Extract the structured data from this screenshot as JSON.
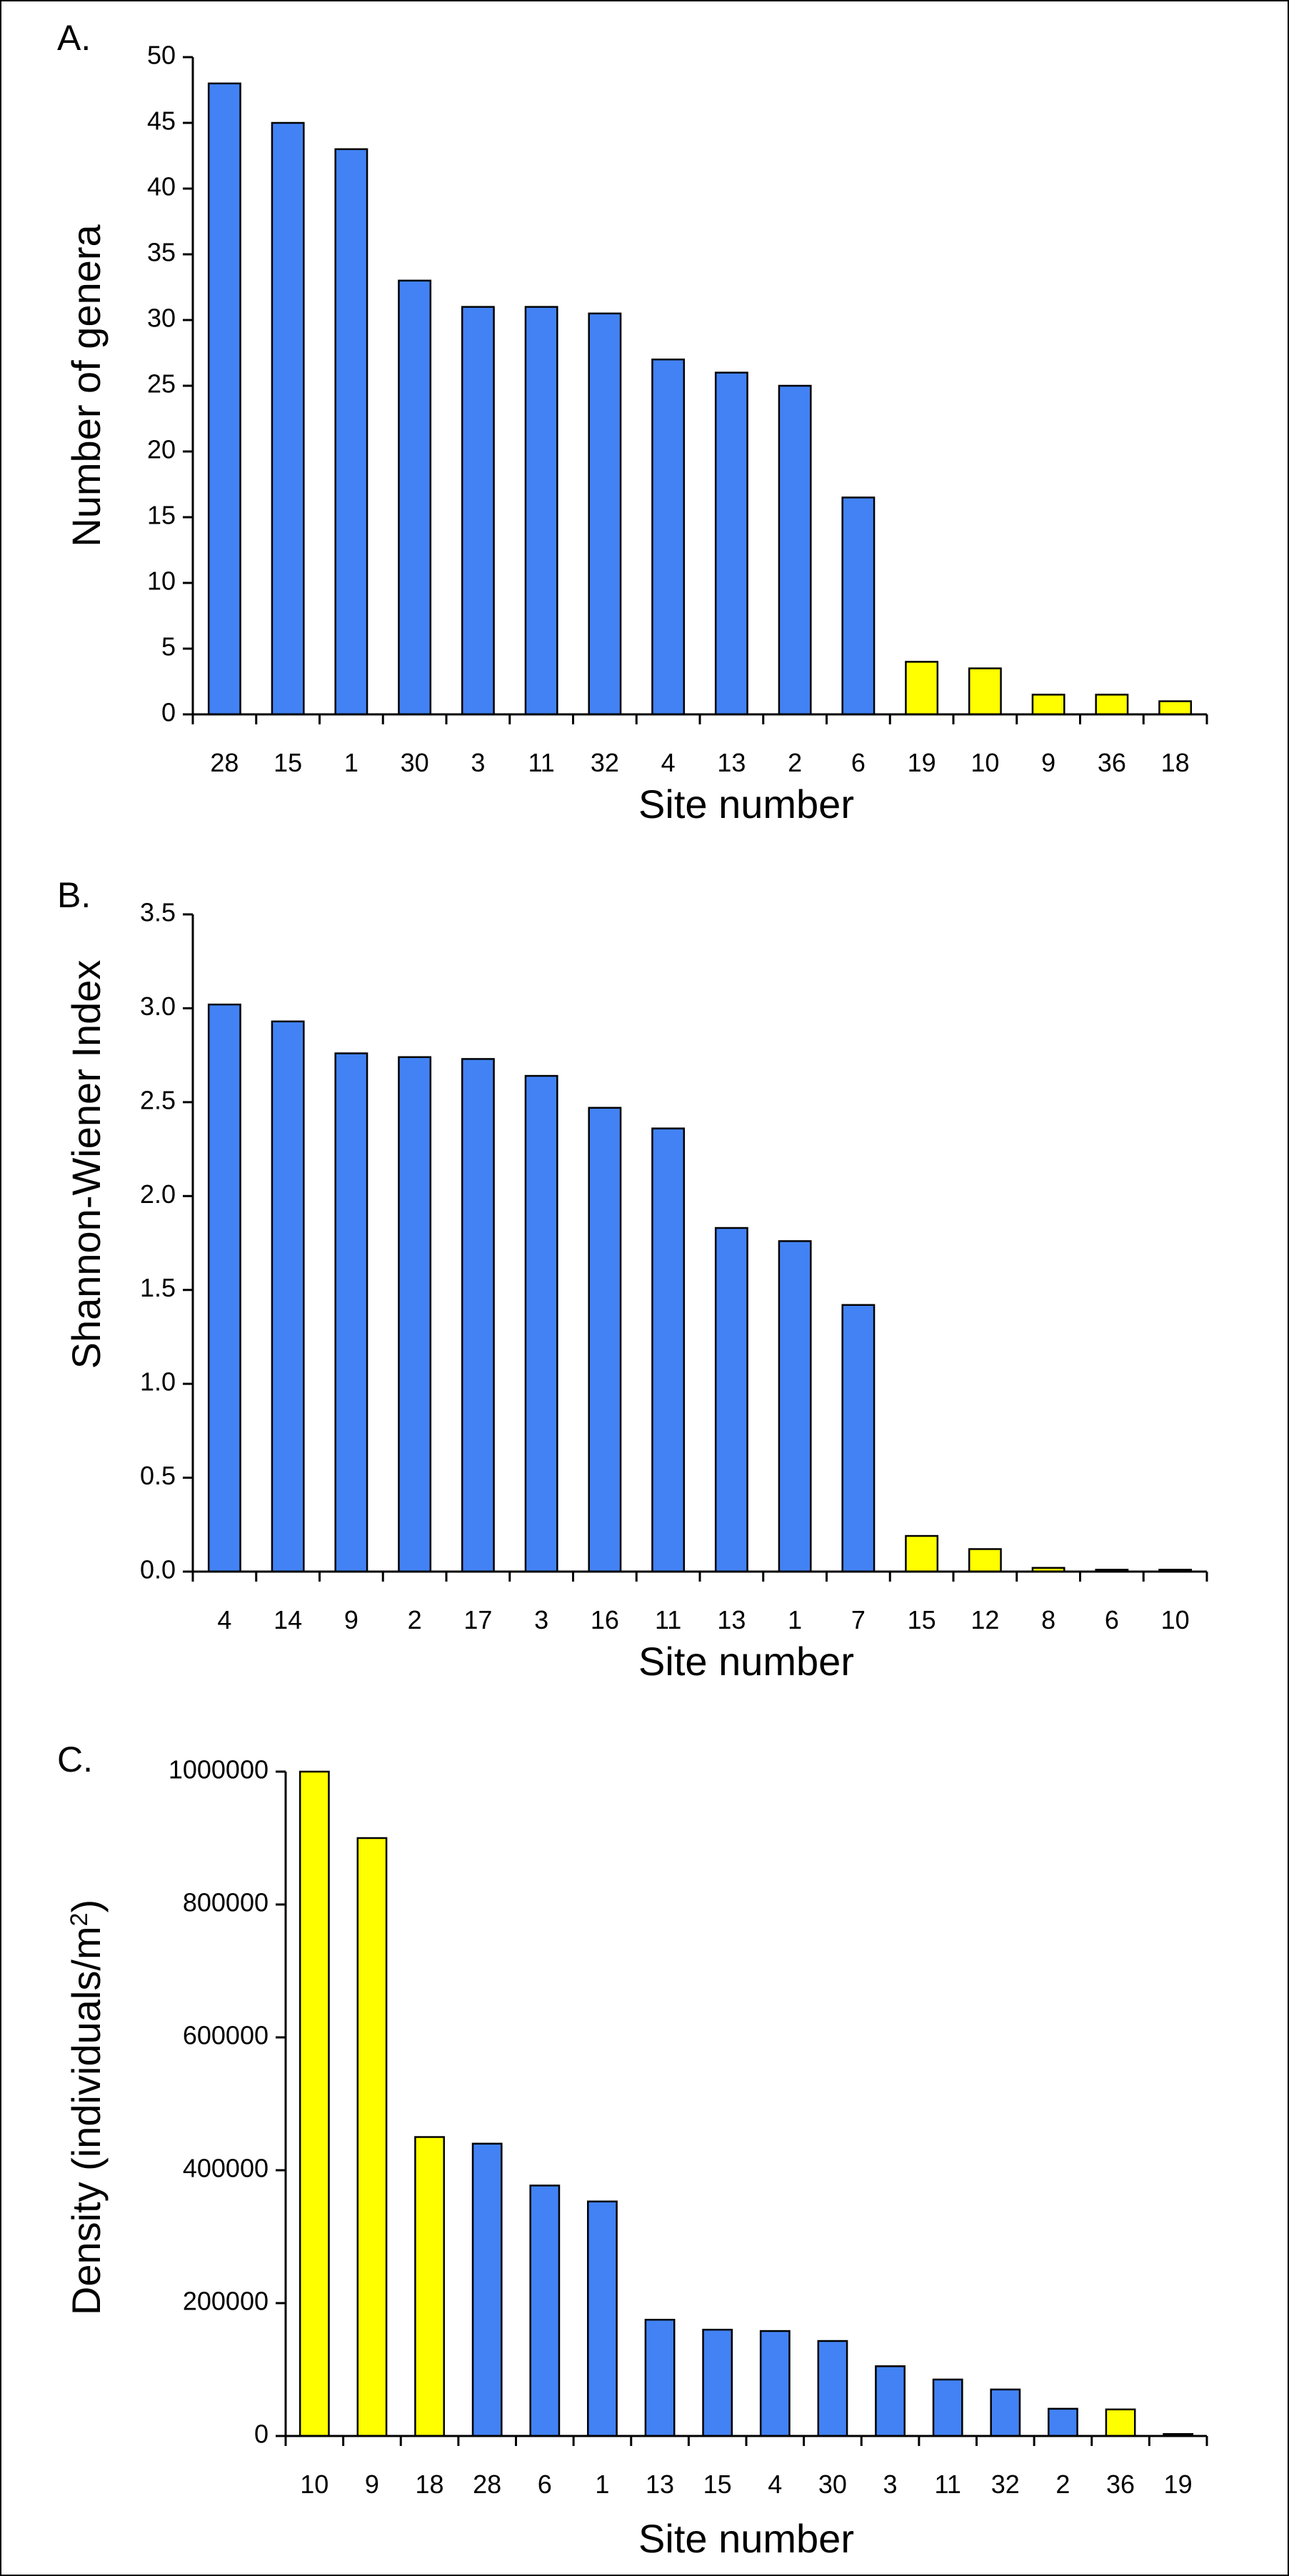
{
  "chart_data": [
    {
      "type": "bar",
      "panel_label": "A.",
      "categories": [
        "28",
        "15",
        "1",
        "30",
        "3",
        "11",
        "32",
        "4",
        "13",
        "2",
        "6",
        "19",
        "10",
        "9",
        "36",
        "18"
      ],
      "values": [
        48,
        45,
        43,
        33,
        31,
        31,
        30.5,
        27,
        26,
        25,
        16.5,
        4,
        3.5,
        1.5,
        1.5,
        1
      ],
      "bar_groups": [
        "blue",
        "blue",
        "blue",
        "blue",
        "blue",
        "blue",
        "blue",
        "blue",
        "blue",
        "blue",
        "blue",
        "yellow",
        "yellow",
        "yellow",
        "yellow",
        "yellow"
      ],
      "xlabel": "Site number",
      "ylabel": "Number of genera",
      "ylim": [
        0,
        50
      ],
      "yticks": [
        "0",
        "5",
        "10",
        "15",
        "20",
        "25",
        "30",
        "35",
        "40",
        "45",
        "50"
      ],
      "grid": false
    },
    {
      "type": "bar",
      "panel_label": "B.",
      "categories": [
        "4",
        "14",
        "9",
        "2",
        "17",
        "3",
        "16",
        "11",
        "13",
        "1",
        "7",
        "15",
        "12",
        "8",
        "6",
        "10"
      ],
      "values": [
        3.02,
        2.93,
        2.76,
        2.74,
        2.73,
        2.64,
        2.47,
        2.36,
        1.83,
        1.76,
        1.42,
        0.19,
        0.12,
        0.02,
        0.01,
        0.01
      ],
      "bar_groups": [
        "blue",
        "blue",
        "blue",
        "blue",
        "blue",
        "blue",
        "blue",
        "blue",
        "blue",
        "blue",
        "blue",
        "yellow",
        "yellow",
        "yellow",
        "yellow",
        "yellow"
      ],
      "xlabel": "Site number",
      "ylabel": "Shannon-Wiener Index",
      "ylim": [
        0,
        3.5
      ],
      "yticks": [
        "0.0",
        "0.5",
        "1.0",
        "1.5",
        "2.0",
        "2.5",
        "3.0",
        "3.5"
      ],
      "grid": false
    },
    {
      "type": "bar",
      "panel_label": "C.",
      "categories": [
        "10",
        "9",
        "18",
        "28",
        "6",
        "1",
        "13",
        "15",
        "4",
        "30",
        "3",
        "11",
        "32",
        "2",
        "36",
        "19"
      ],
      "values": [
        1000000,
        900000,
        450000,
        440000,
        377000,
        353000,
        175000,
        160000,
        158000,
        143000,
        105000,
        85000,
        70000,
        41000,
        40000,
        3000
      ],
      "bar_groups": [
        "yellow",
        "yellow",
        "yellow",
        "blue",
        "blue",
        "blue",
        "blue",
        "blue",
        "blue",
        "blue",
        "blue",
        "blue",
        "blue",
        "blue",
        "yellow",
        "blue"
      ],
      "xlabel": "Site number",
      "ylabel_main": "Density (individuals/m",
      "ylabel_sup": "2",
      "ylabel_tail": ")",
      "ylim": [
        0,
        1000000
      ],
      "yticks": [
        "0",
        "200000",
        "400000",
        "600000",
        "800000",
        "1000000"
      ],
      "grid": false
    }
  ],
  "colors": {
    "blue": "#4282f4",
    "yellow": "#ffff00"
  }
}
